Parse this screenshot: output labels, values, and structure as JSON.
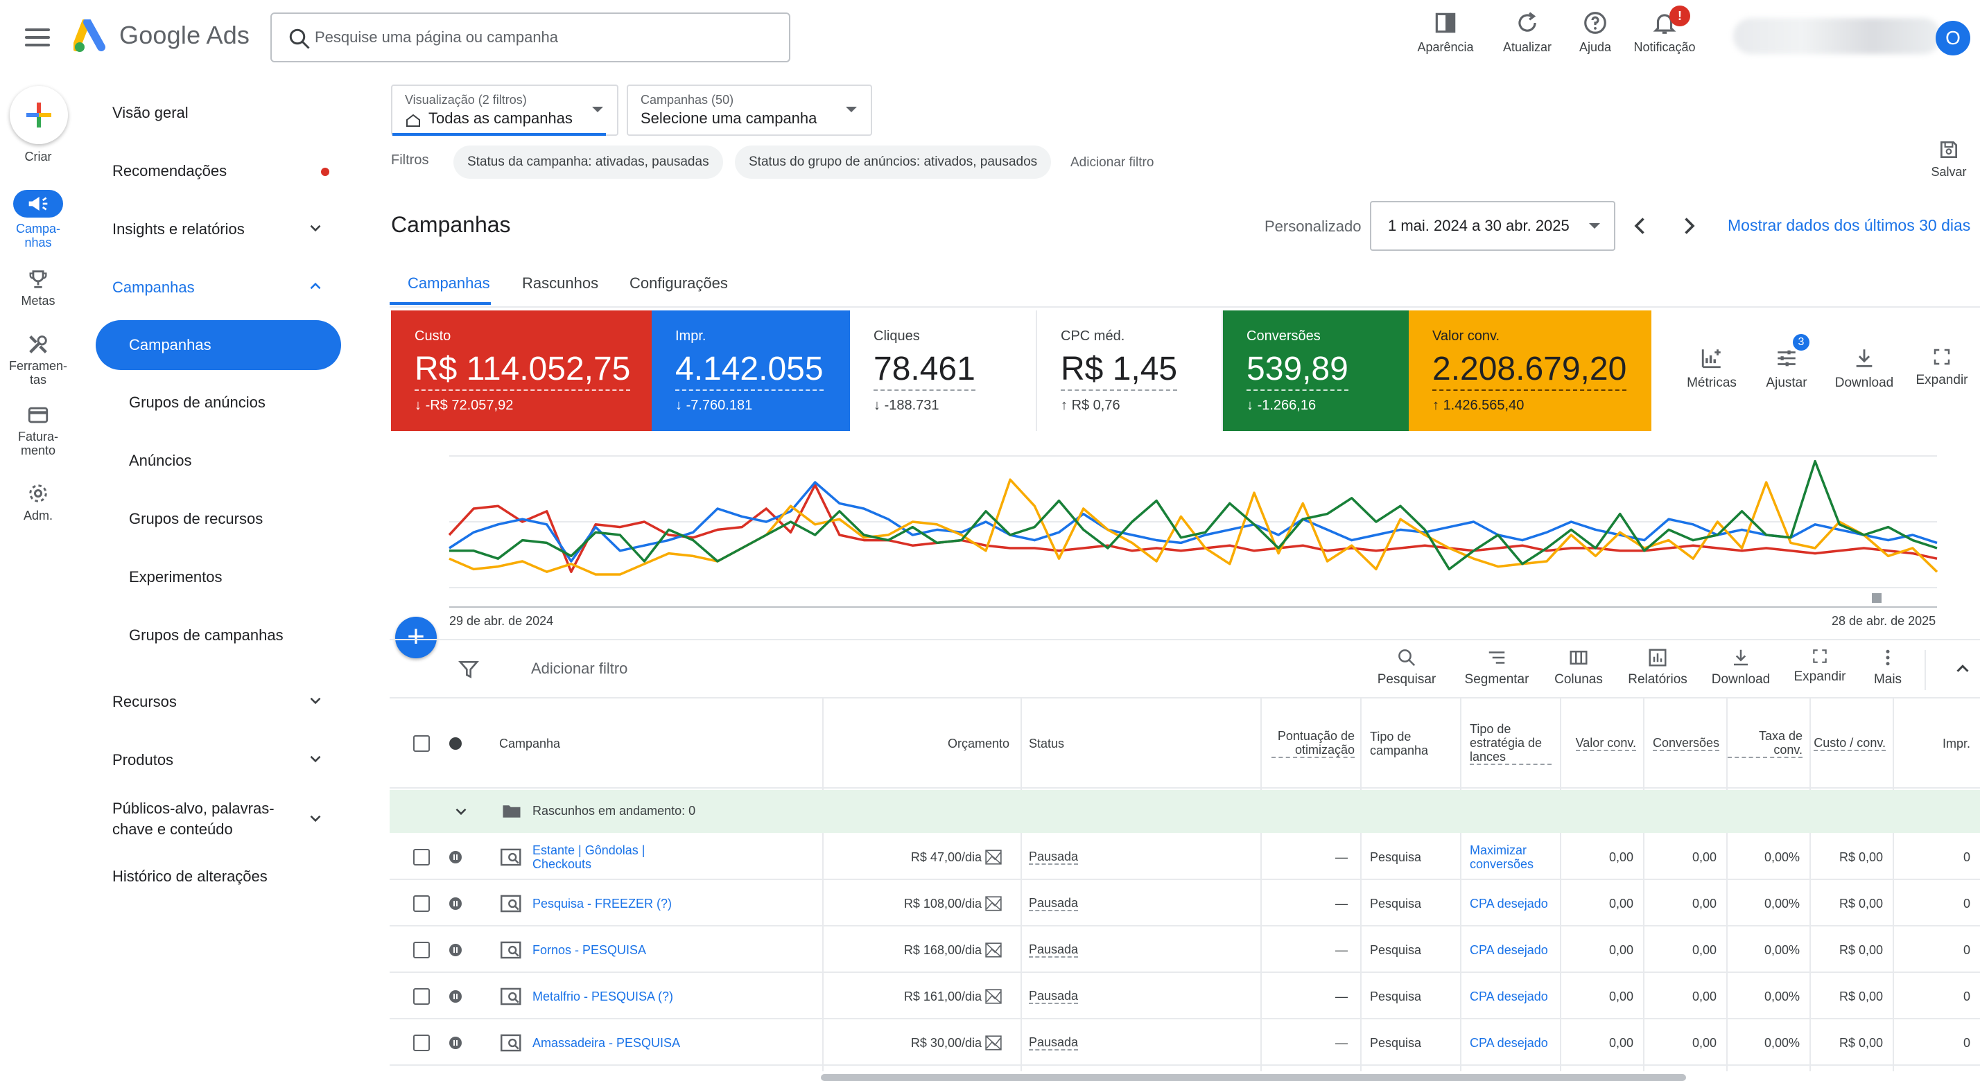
{
  "app": {
    "name": "Google Ads",
    "search_placeholder": "Pesquise uma página ou campanha",
    "avatar_initial": "O"
  },
  "top_actions": [
    {
      "label": "Aparência",
      "icon": "appearance-icon"
    },
    {
      "label": "Atualizar",
      "icon": "refresh-icon"
    },
    {
      "label": "Ajuda",
      "icon": "help-icon"
    },
    {
      "label": "Notificação",
      "icon": "bell-icon",
      "badge": "!"
    }
  ],
  "rail": [
    {
      "label": "Criar",
      "icon": "plus-icon"
    },
    {
      "label": "Campa-\nnhas",
      "icon": "megaphone-icon",
      "active": true
    },
    {
      "label": "Metas",
      "icon": "trophy-icon"
    },
    {
      "label": "Ferramen-\ntas",
      "icon": "tools-icon"
    },
    {
      "label": "Fatura-\nmento",
      "icon": "credit-card-icon"
    },
    {
      "label": "Adm.",
      "icon": "gear-icon"
    }
  ],
  "nav": {
    "items": [
      {
        "label": "Visão geral"
      },
      {
        "label": "Recomendações",
        "dot": true
      },
      {
        "label": "Insights e relatórios",
        "expandable": true
      },
      {
        "label": "Campanhas",
        "expanded": true
      }
    ],
    "campaigns_sub": [
      "Campanhas",
      "Grupos de anúncios",
      "Anúncios",
      "Grupos de recursos",
      "Experimentos",
      "Grupos de campanhas"
    ],
    "lower": [
      {
        "label": "Recursos"
      },
      {
        "label": "Produtos"
      },
      {
        "label": "Públicos-alvo, palavras-chave e conteúdo"
      },
      {
        "label": "Histórico de alterações"
      }
    ]
  },
  "view_selector": {
    "small": "Visualização (2 filtros)",
    "value": "Todas as campanhas"
  },
  "campaign_selector": {
    "small": "Campanhas (50)",
    "value": "Selecione uma campanha"
  },
  "filters": {
    "label": "Filtros",
    "chips": [
      "Status da campanha: ativadas, pausadas",
      "Status do grupo de anúncios: ativados, pausados"
    ],
    "add": "Adicionar filtro"
  },
  "save_label": "Salvar",
  "page_title": "Campanhas",
  "date": {
    "mode": "Personalizado",
    "range": "1 mai. 2024 a 30 abr. 2025",
    "shortcut": "Mostrar dados dos últimos 30 dias"
  },
  "tabs": [
    "Campanhas",
    "Rascunhos",
    "Configurações"
  ],
  "metrics": [
    {
      "label": "Custo",
      "value": "R$ 114.052,75",
      "delta": "-R$ 72.057,92",
      "dir": "down",
      "color": "#d93025"
    },
    {
      "label": "Impr.",
      "value": "4.142.055",
      "delta": "-7.760.181",
      "dir": "down",
      "color": "#1a73e8"
    },
    {
      "label": "Cliques",
      "value": "78.461",
      "delta": "-188.731",
      "dir": "down",
      "color": "#ffffff"
    },
    {
      "label": "CPC méd.",
      "value": "R$ 1,45",
      "delta": "R$ 0,76",
      "dir": "up",
      "color": "#ffffff"
    },
    {
      "label": "Conversões",
      "value": "539,89",
      "delta": "-1.266,16",
      "dir": "down",
      "color": "#188038"
    },
    {
      "label": "Valor conv.",
      "value": "2.208.679,20",
      "delta": "1.426.565,40",
      "dir": "up",
      "color": "#f9ab00"
    }
  ],
  "metric_tools": [
    {
      "label": "Métricas",
      "icon": "metrics-icon"
    },
    {
      "label": "Ajustar",
      "icon": "tune-icon",
      "badge": "3"
    },
    {
      "label": "Download",
      "icon": "download-icon"
    },
    {
      "label": "Expandir",
      "icon": "expand-icon"
    }
  ],
  "chart_data": {
    "type": "line",
    "x_start": "29 de abr. de 2024",
    "x_end": "28 de abr. de 2025",
    "series": [
      {
        "color": "#d93025",
        "values": [
          40,
          60,
          62,
          50,
          58,
          12,
          48,
          46,
          50,
          40,
          38,
          44,
          46,
          60,
          42,
          78,
          40,
          36,
          36,
          32,
          34,
          36,
          32,
          30,
          30,
          28,
          30,
          32,
          28,
          30,
          28,
          30,
          32,
          28,
          30,
          32,
          28,
          30,
          28,
          30,
          32,
          30,
          28,
          30,
          32,
          28,
          30,
          30,
          28,
          28,
          30,
          32,
          30,
          28,
          30,
          28,
          26,
          28,
          30,
          28,
          26,
          22
        ]
      },
      {
        "color": "#1a73e8",
        "values": [
          30,
          42,
          48,
          52,
          48,
          20,
          46,
          28,
          32,
          36,
          42,
          60,
          54,
          50,
          58,
          80,
          64,
          60,
          52,
          40,
          44,
          42,
          50,
          40,
          36,
          42,
          56,
          44,
          40,
          36,
          34,
          40,
          44,
          48,
          40,
          52,
          44,
          36,
          40,
          44,
          42,
          46,
          50,
          40,
          36,
          42,
          50,
          44,
          40,
          36,
          52,
          48,
          40,
          44,
          40,
          38,
          48,
          44,
          40,
          36,
          40,
          34
        ]
      },
      {
        "color": "#f9ab00",
        "values": [
          22,
          14,
          16,
          20,
          12,
          18,
          10,
          10,
          18,
          26,
          24,
          20,
          30,
          40,
          62,
          48,
          52,
          38,
          40,
          50,
          48,
          40,
          28,
          82,
          62,
          22,
          60,
          44,
          34,
          20,
          54,
          30,
          18,
          72,
          26,
          64,
          20,
          32,
          14,
          52,
          40,
          30,
          22,
          16,
          18,
          20,
          40,
          24,
          42,
          30,
          36,
          22,
          50,
          30,
          80,
          34,
          30,
          50,
          40,
          24,
          30,
          12
        ]
      },
      {
        "color": "#188038",
        "values": [
          28,
          28,
          22,
          36,
          34,
          24,
          42,
          40,
          20,
          44,
          36,
          20,
          30,
          40,
          50,
          40,
          58,
          40,
          36,
          46,
          34,
          36,
          58,
          40,
          46,
          66,
          44,
          30,
          50,
          66,
          38,
          42,
          64,
          48,
          30,
          52,
          56,
          68,
          50,
          62,
          44,
          14,
          28,
          40,
          18,
          30,
          44,
          30,
          56,
          28,
          44,
          36,
          40,
          58,
          40,
          38,
          96,
          48,
          40,
          46,
          36,
          30
        ]
      }
    ]
  },
  "table_toolbar": {
    "add_filter": "Adicionar filtro",
    "tools": [
      {
        "label": "Pesquisar",
        "icon": "search-icon"
      },
      {
        "label": "Segmentar",
        "icon": "segment-icon"
      },
      {
        "label": "Colunas",
        "icon": "columns-icon"
      },
      {
        "label": "Relatórios",
        "icon": "reports-icon"
      },
      {
        "label": "Download",
        "icon": "download-icon"
      },
      {
        "label": "Expandir",
        "icon": "expand-icon"
      },
      {
        "label": "Mais",
        "icon": "more-vert-icon"
      }
    ]
  },
  "table": {
    "headers": {
      "campaign": "Campanha",
      "budget": "Orçamento",
      "status": "Status",
      "opt_score": "Pontuação de otimização",
      "type": "Tipo de campanha",
      "bid_strategy": "Tipo de estratégia de lances",
      "conv_value": "Valor conv.",
      "conversions": "Conversões",
      "conv_rate": "Taxa de conv.",
      "cost_conv": "Custo / conv.",
      "impr": "Impr."
    },
    "drafts_label": "Rascunhos em andamento: 0",
    "rows": [
      {
        "campaign": "Estante | Gôndolas | Checkouts",
        "budget": "R$ 47,00/dia",
        "status": "Pausada",
        "opt": "—",
        "type": "Pesquisa",
        "bid": "Maximizar conversões",
        "conv_value": "0,00",
        "conversions": "0,00",
        "conv_rate": "0,00%",
        "cost_conv": "R$ 0,00",
        "impr": "0"
      },
      {
        "campaign": "Pesquisa - FREEZER (?)",
        "budget": "R$ 108,00/dia",
        "status": "Pausada",
        "opt": "—",
        "type": "Pesquisa",
        "bid": "CPA desejado",
        "conv_value": "0,00",
        "conversions": "0,00",
        "conv_rate": "0,00%",
        "cost_conv": "R$ 0,00",
        "impr": "0"
      },
      {
        "campaign": "Fornos - PESQUISA",
        "budget": "R$ 168,00/dia",
        "status": "Pausada",
        "opt": "—",
        "type": "Pesquisa",
        "bid": "CPA desejado",
        "conv_value": "0,00",
        "conversions": "0,00",
        "conv_rate": "0,00%",
        "cost_conv": "R$ 0,00",
        "impr": "0"
      },
      {
        "campaign": "Metalfrio - PESQUISA (?)",
        "budget": "R$ 161,00/dia",
        "status": "Pausada",
        "opt": "—",
        "type": "Pesquisa",
        "bid": "CPA desejado",
        "conv_value": "0,00",
        "conversions": "0,00",
        "conv_rate": "0,00%",
        "cost_conv": "R$ 0,00",
        "impr": "0"
      },
      {
        "campaign": "Amassadeira - PESQUISA",
        "budget": "R$ 30,00/dia",
        "status": "Pausada",
        "opt": "—",
        "type": "Pesquisa",
        "bid": "CPA desejado",
        "conv_value": "0,00",
        "conversions": "0,00",
        "conv_rate": "0,00%",
        "cost_conv": "R$ 0,00",
        "impr": "0"
      }
    ]
  }
}
